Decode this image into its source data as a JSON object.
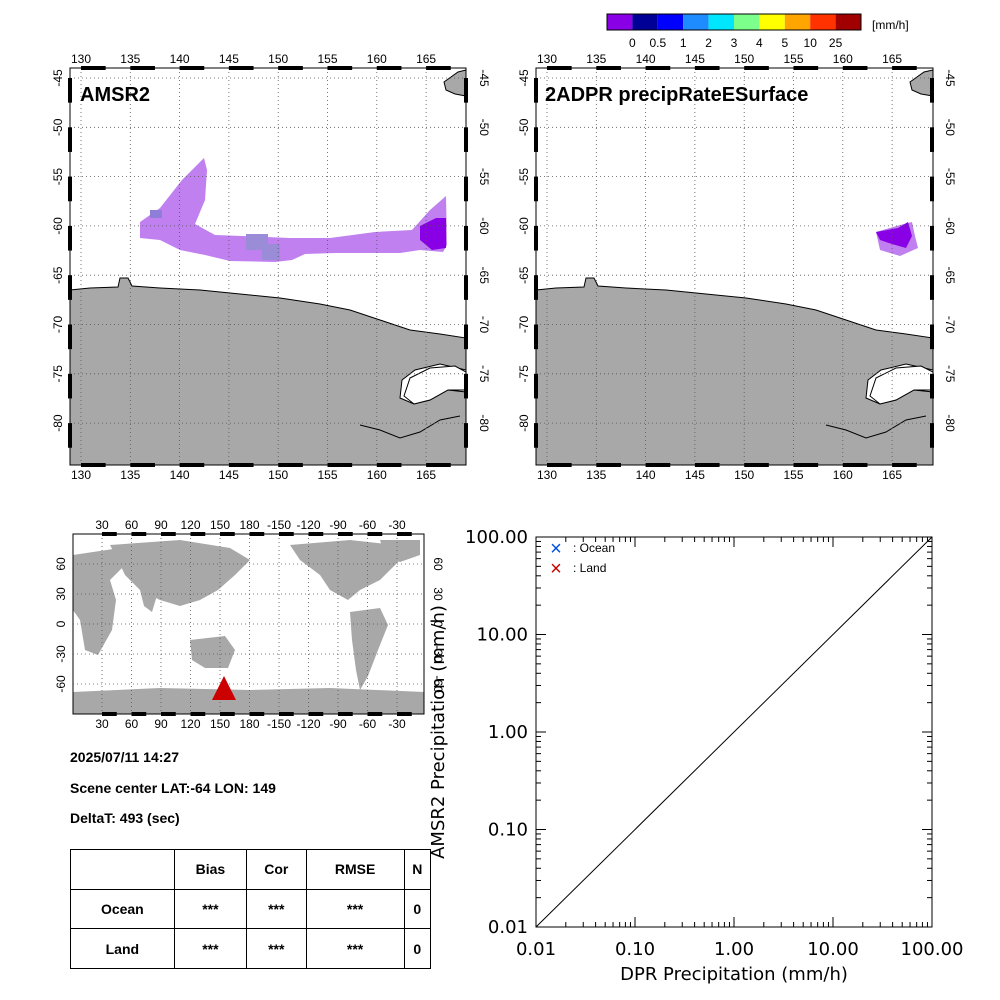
{
  "colorbar": {
    "unit": "[mm/h]",
    "colors": [
      "#8a00e6",
      "#000096",
      "#0000ff",
      "#1e8cff",
      "#00e6ff",
      "#7dff8c",
      "#ffff00",
      "#ffa500",
      "#ff3200",
      "#a00000"
    ],
    "labels": [
      "0",
      "0.5",
      "1",
      "2",
      "3",
      "4",
      "5",
      "10",
      "25"
    ]
  },
  "maps": {
    "left_title": "AMSR2",
    "right_title": "2ADPR precipRateESurface",
    "lon_labels": [
      "130",
      "135",
      "140",
      "145",
      "150",
      "155",
      "160",
      "165"
    ],
    "lat_labels": [
      "-45",
      "-50",
      "-55",
      "-60",
      "-65",
      "-70",
      "-75",
      "-80"
    ],
    "land_color": "#a8a8a8",
    "precip_color": "#c080f0",
    "heavy_color": "#8a00e6"
  },
  "world_map": {
    "lon_labels": [
      "30",
      "60",
      "90",
      "120",
      "150",
      "180",
      "-150",
      "-120",
      "-90",
      "-60",
      "-30"
    ],
    "lat_labels": [
      "60",
      "30",
      "0",
      "-30",
      "-60"
    ],
    "marker_color": "#cc0000"
  },
  "info": {
    "datetime": "2025/07/11 14:27",
    "scene_center": "Scene center LAT:-64   LON: 149",
    "delta_t": "DeltaT:  493 (sec)"
  },
  "stats_table": {
    "headers": [
      "",
      "Bias",
      "Cor",
      "RMSE",
      "N"
    ],
    "rows": [
      {
        "label": "Ocean",
        "bias": "***",
        "cor": "***",
        "rmse": "***",
        "n": "0"
      },
      {
        "label": "Land",
        "bias": "***",
        "cor": "***",
        "rmse": "***",
        "n": "0"
      }
    ]
  },
  "chart_data": {
    "type": "scatter",
    "xlabel": "DPR Precipitation (mm/h)",
    "ylabel": "AMSR2 Precipitation (mm/h)",
    "x_scale": "log",
    "y_scale": "log",
    "xlim": [
      0.01,
      100
    ],
    "ylim": [
      0.01,
      100
    ],
    "x_tick_labels": [
      "0.01",
      "0.10",
      "1.00",
      "10.00",
      "100.00"
    ],
    "y_tick_labels": [
      "0.01",
      "0.10",
      "1.00",
      "10.00",
      "100.00"
    ],
    "reference_line": "1:1",
    "series": [
      {
        "name": ": Ocean",
        "color": "#0050e6",
        "marker": "x",
        "points": []
      },
      {
        "name": ": Land",
        "color": "#c80000",
        "marker": "x",
        "points": []
      }
    ],
    "legend_position": "top-left",
    "grid": false
  }
}
